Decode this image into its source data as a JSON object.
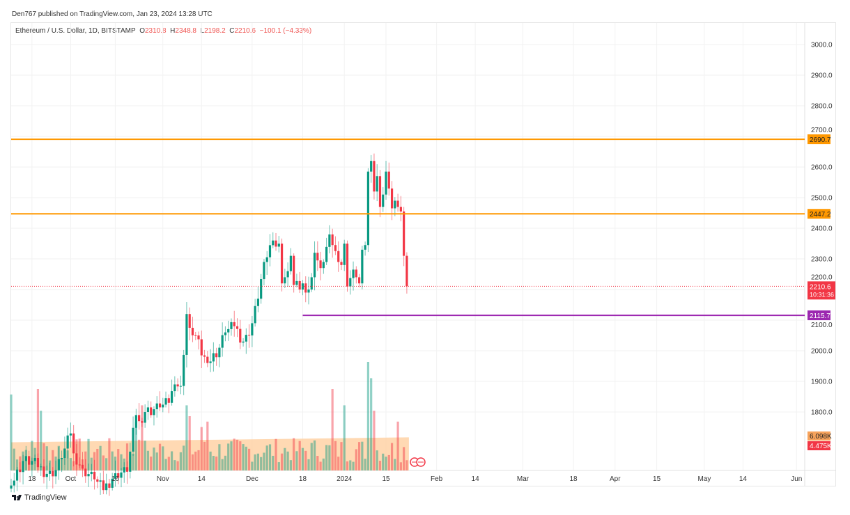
{
  "publisher_line": "Den767 published on TradingView.com, Jan 23, 2024 13:28 UTC",
  "legend": {
    "symbol": "Ethereum / U.S. Dollar, 1D, BITSTAMP",
    "o_label": "O",
    "o": "2310.8",
    "h_label": "H",
    "h": "2348.8",
    "l_label": "L",
    "l": "2198.2",
    "c_label": "C",
    "c": "2210.6",
    "change": "−100.1 (−4.33%)"
  },
  "logo_text": "TradingView",
  "colors": {
    "up": "#089981",
    "down": "#f23645",
    "resistance": "#ff9800",
    "support": "#9c27b0",
    "vol_ma": "#ffcc99"
  },
  "chart_data": {
    "type": "candlestick",
    "title": "Ethereum / U.S. Dollar, 1D, BITSTAMP",
    "start_date": "2023-09-11",
    "ylim": [
      1640,
      3060
    ],
    "y_ticks": [
      "3000.0",
      "2900.0",
      "2800.0",
      "2700.0",
      "2600.0",
      "2500.0",
      "2400.0",
      "2300.0",
      "2200.0",
      "2100.0",
      "2000.0",
      "1900.0",
      "1800.0"
    ],
    "x_ticks": [
      {
        "label": "18",
        "day": 7
      },
      {
        "label": "Oct",
        "day": 20
      },
      {
        "label": "16",
        "day": 35
      },
      {
        "label": "Nov",
        "day": 51
      },
      {
        "label": "14",
        "day": 64
      },
      {
        "label": "Dec",
        "day": 81
      },
      {
        "label": "18",
        "day": 98
      },
      {
        "label": "2024",
        "day": 112
      },
      {
        "label": "15",
        "day": 126
      },
      {
        "label": "Feb",
        "day": 143
      },
      {
        "label": "14",
        "day": 156
      },
      {
        "label": "Mar",
        "day": 172
      },
      {
        "label": "18",
        "day": 189
      },
      {
        "label": "Apr",
        "day": 203
      },
      {
        "label": "15",
        "day": 217
      },
      {
        "label": "May",
        "day": 233
      },
      {
        "label": "14",
        "day": 246
      },
      {
        "label": "Jun",
        "day": 264
      }
    ],
    "close_keypoints": [
      [
        0,
        1560
      ],
      [
        4,
        1640
      ],
      [
        7,
        1640
      ],
      [
        9,
        1620
      ],
      [
        14,
        1590
      ],
      [
        17,
        1650
      ],
      [
        20,
        1730
      ],
      [
        21,
        1665
      ],
      [
        24,
        1615
      ],
      [
        28,
        1580
      ],
      [
        31,
        1545
      ],
      [
        35,
        1600
      ],
      [
        39,
        1605
      ],
      [
        42,
        1790
      ],
      [
        43,
        1770
      ],
      [
        45,
        1800
      ],
      [
        50,
        1815
      ],
      [
        53,
        1830
      ],
      [
        55,
        1890
      ],
      [
        57,
        1885
      ],
      [
        59,
        2120
      ],
      [
        60,
        2075
      ],
      [
        62,
        2050
      ],
      [
        64,
        1985
      ],
      [
        66,
        1960
      ],
      [
        67,
        1965
      ],
      [
        70,
        2010
      ],
      [
        72,
        2060
      ],
      [
        75,
        2080
      ],
      [
        78,
        2030
      ],
      [
        80,
        2050
      ],
      [
        81,
        2090
      ],
      [
        83,
        2170
      ],
      [
        85,
        2290
      ],
      [
        88,
        2360
      ],
      [
        89,
        2340
      ],
      [
        90,
        2350
      ],
      [
        91,
        2220
      ],
      [
        93,
        2260
      ],
      [
        94,
        2310
      ],
      [
        95,
        2215
      ],
      [
        97,
        2200
      ],
      [
        98,
        2220
      ],
      [
        100,
        2200
      ],
      [
        101,
        2240
      ],
      [
        102,
        2320
      ],
      [
        104,
        2270
      ],
      [
        105,
        2290
      ],
      [
        107,
        2380
      ],
      [
        108,
        2345
      ],
      [
        110,
        2290
      ],
      [
        111,
        2280
      ],
      [
        112,
        2350
      ],
      [
        113,
        2210
      ],
      [
        115,
        2265
      ],
      [
        116,
        2240
      ],
      [
        117,
        2220
      ],
      [
        118,
        2330
      ],
      [
        119,
        2345
      ],
      [
        120,
        2585
      ],
      [
        121,
        2620
      ],
      [
        122,
        2520
      ],
      [
        123,
        2570
      ],
      [
        124,
        2470
      ],
      [
        125,
        2510
      ],
      [
        126,
        2585
      ],
      [
        127,
        2530
      ],
      [
        128,
        2465
      ],
      [
        129,
        2490
      ],
      [
        130,
        2470
      ],
      [
        131,
        2455
      ],
      [
        132,
        2310
      ],
      [
        133,
        2210.6
      ]
    ],
    "volume_spikes_k": [
      [
        0,
        14
      ],
      [
        9,
        15
      ],
      [
        10,
        11
      ],
      [
        42,
        9
      ],
      [
        44,
        12
      ],
      [
        59,
        12
      ],
      [
        60,
        10
      ],
      [
        64,
        8
      ],
      [
        66,
        9
      ],
      [
        108,
        15
      ],
      [
        112,
        12
      ],
      [
        120,
        20
      ],
      [
        121,
        17
      ],
      [
        122,
        11
      ],
      [
        130,
        9
      ]
    ],
    "volume_base_k": 5,
    "volume_ma_k": {
      "start": 5.2,
      "end": 6.1
    },
    "levels": [
      {
        "label": "2690.7",
        "value": 2690.7,
        "kind": "resistance"
      },
      {
        "label": "2447.2",
        "value": 2447.2,
        "kind": "resistance"
      },
      {
        "label": "2115.7",
        "value": 2115.7,
        "kind": "support",
        "from_day": 98
      }
    ],
    "last_price": {
      "label": "2210.6",
      "countdown": "10:31:36"
    },
    "volume_labels": {
      "ma": "6.098K",
      "last": "4.475K"
    }
  }
}
